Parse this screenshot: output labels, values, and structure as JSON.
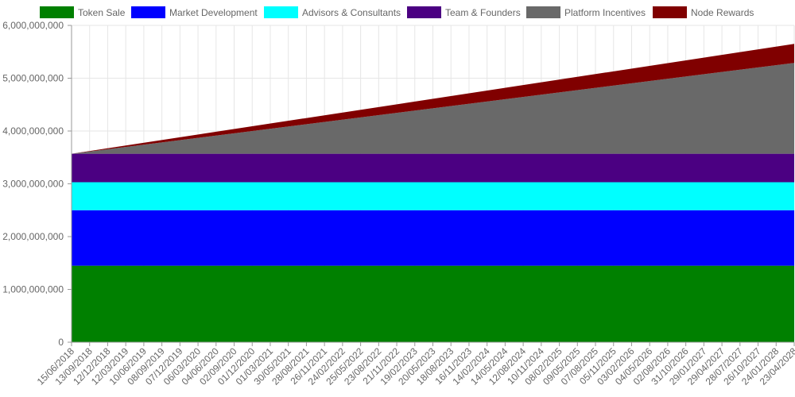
{
  "chart_data": {
    "type": "area",
    "stacked": true,
    "title": "",
    "xlabel": "",
    "ylabel": "",
    "ylim": [
      0,
      6000000000
    ],
    "y_ticks": [
      0,
      1000000000,
      2000000000,
      3000000000,
      4000000000,
      5000000000,
      6000000000
    ],
    "y_tick_labels": [
      "0",
      "1,000,000,000",
      "2,000,000,000",
      "3,000,000,000",
      "4,000,000,000",
      "5,000,000,000",
      "6,000,000,000"
    ],
    "x_tick_labels": [
      "15/06/2018",
      "13/09/2018",
      "12/12/2018",
      "12/03/2019",
      "10/06/2019",
      "08/09/2019",
      "07/12/2019",
      "06/03/2020",
      "04/06/2020",
      "02/09/2020",
      "01/12/2020",
      "01/03/2021",
      "30/05/2021",
      "28/08/2021",
      "26/11/2021",
      "24/02/2022",
      "25/05/2022",
      "23/08/2022",
      "21/11/2022",
      "19/02/2023",
      "20/05/2023",
      "18/08/2023",
      "16/11/2023",
      "14/02/2024",
      "14/05/2024",
      "12/08/2024",
      "10/11/2024",
      "08/02/2025",
      "09/05/2025",
      "07/08/2025",
      "05/11/2025",
      "03/02/2026",
      "04/05/2026",
      "02/08/2026",
      "31/10/2026",
      "29/01/2027",
      "29/04/2027",
      "28/07/2027",
      "26/10/2027",
      "24/01/2028",
      "23/04/2028"
    ],
    "grid": true,
    "legend_position": "top",
    "series": [
      {
        "name": "Token Sale",
        "color": "#008000",
        "start": 1450000000,
        "end": 1450000000
      },
      {
        "name": "Market Development",
        "color": "#0000ff",
        "start": 1050000000,
        "end": 1050000000
      },
      {
        "name": "Advisors & Consultants",
        "color": "#00ffff",
        "start": 530000000,
        "end": 530000000
      },
      {
        "name": "Team & Founders",
        "color": "#4b0082",
        "start": 540000000,
        "end": 540000000
      },
      {
        "name": "Platform Incentives",
        "color": "#696969",
        "start": 0,
        "end": 1720000000
      },
      {
        "name": "Node Rewards",
        "color": "#800000",
        "start": 0,
        "end": 360000000
      }
    ]
  }
}
